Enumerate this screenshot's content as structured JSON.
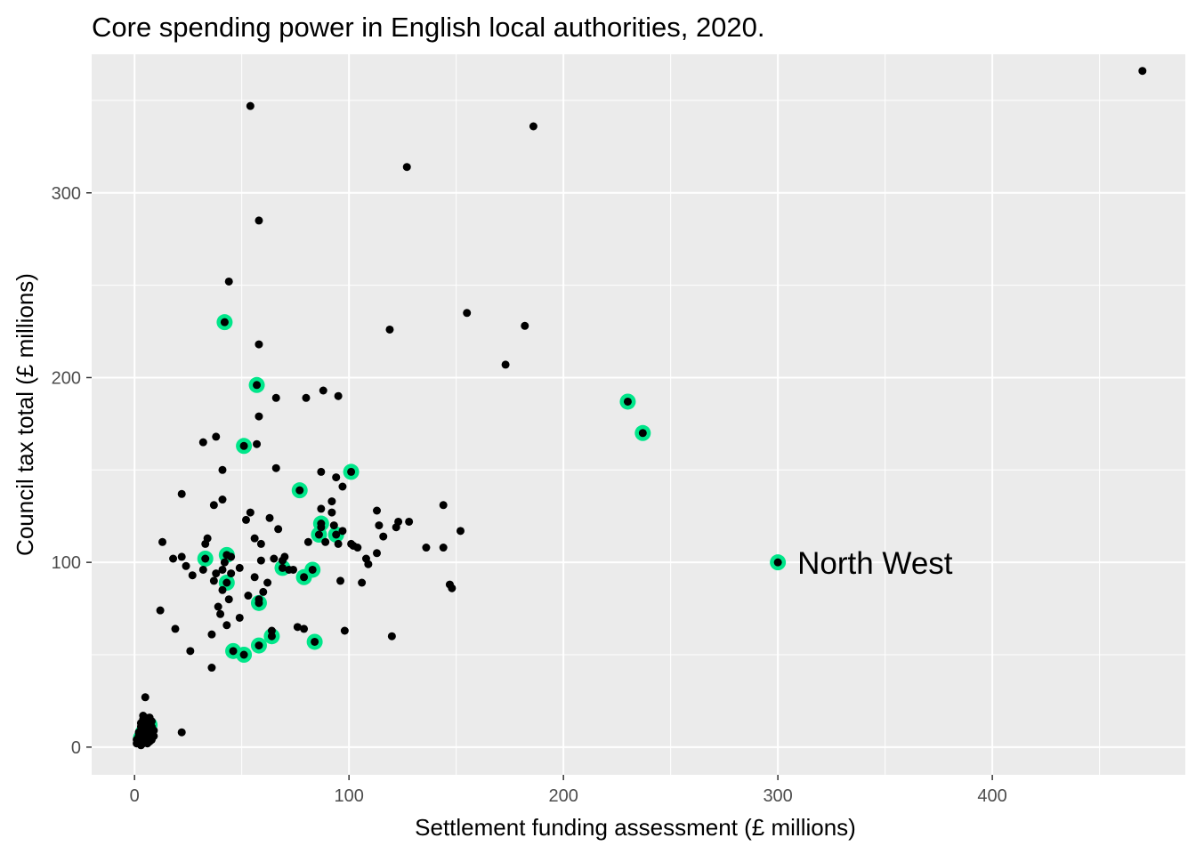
{
  "chart_data": {
    "type": "scatter",
    "title": "Core spending power in English local authorities, 2020.",
    "xlabel": "Settlement funding assessment (£ millions)",
    "ylabel": "Council tax total (£ millions)",
    "xlim": [
      -20,
      490
    ],
    "ylim": [
      -15,
      375
    ],
    "x_ticks": [
      0,
      100,
      200,
      300,
      400
    ],
    "y_ticks": [
      0,
      100,
      200,
      300
    ],
    "grid": true,
    "legend": "none",
    "colors": {
      "panel": "#ebebeb",
      "grid_major": "#ffffff",
      "point": "#000000",
      "highlight": "#00e68a",
      "tick_label": "#4d4d4d"
    },
    "series": [
      {
        "points": [
          [
            470,
            366
          ],
          [
            54,
            347
          ],
          [
            186,
            336
          ],
          [
            127,
            314
          ],
          [
            58,
            285
          ],
          [
            44,
            252
          ],
          [
            155,
            235
          ],
          [
            119,
            226
          ],
          [
            182,
            228
          ],
          [
            58,
            218
          ],
          [
            173,
            207
          ],
          [
            88,
            193
          ],
          [
            95,
            190
          ],
          [
            66,
            189
          ],
          [
            80,
            189
          ],
          [
            58,
            179
          ],
          [
            38,
            168
          ],
          [
            32,
            165
          ],
          [
            57,
            164
          ],
          [
            87,
            149
          ],
          [
            41,
            150
          ],
          [
            66,
            151
          ],
          [
            94,
            146
          ],
          [
            97,
            141
          ],
          [
            22,
            137
          ],
          [
            41,
            134
          ],
          [
            37,
            131
          ],
          [
            92,
            133
          ],
          [
            144,
            131
          ],
          [
            13,
            111
          ],
          [
            18,
            102
          ],
          [
            22,
            103
          ],
          [
            24,
            98
          ],
          [
            27,
            93
          ],
          [
            32,
            96
          ],
          [
            33,
            110
          ],
          [
            34,
            113
          ],
          [
            37,
            90
          ],
          [
            38,
            94
          ],
          [
            39,
            76
          ],
          [
            40,
            72
          ],
          [
            41,
            96
          ],
          [
            41,
            85
          ],
          [
            42,
            100
          ],
          [
            43,
            66
          ],
          [
            44,
            80
          ],
          [
            45,
            94
          ],
          [
            45,
            103
          ],
          [
            49,
            97
          ],
          [
            49,
            70
          ],
          [
            52,
            123
          ],
          [
            53,
            82
          ],
          [
            54,
            127
          ],
          [
            56,
            113
          ],
          [
            56,
            92
          ],
          [
            58,
            80
          ],
          [
            59,
            101
          ],
          [
            59,
            110
          ],
          [
            60,
            84
          ],
          [
            62,
            89
          ],
          [
            63,
            124
          ],
          [
            64,
            63
          ],
          [
            65,
            102
          ],
          [
            67,
            118
          ],
          [
            69,
            101
          ],
          [
            70,
            103
          ],
          [
            72,
            96
          ],
          [
            74,
            96
          ],
          [
            76,
            65
          ],
          [
            79,
            64
          ],
          [
            81,
            111
          ],
          [
            87,
            129
          ],
          [
            87,
            119
          ],
          [
            89,
            111
          ],
          [
            92,
            127
          ],
          [
            93,
            120
          ],
          [
            95,
            110
          ],
          [
            96,
            90
          ],
          [
            97,
            117
          ],
          [
            98,
            63
          ],
          [
            101,
            110
          ],
          [
            102,
            109
          ],
          [
            104,
            108
          ],
          [
            106,
            89
          ],
          [
            108,
            102
          ],
          [
            109,
            99
          ],
          [
            113,
            128
          ],
          [
            113,
            105
          ],
          [
            114,
            120
          ],
          [
            116,
            114
          ],
          [
            120,
            60
          ],
          [
            122,
            119
          ],
          [
            123,
            122
          ],
          [
            128,
            122
          ],
          [
            136,
            108
          ],
          [
            144,
            108
          ],
          [
            147,
            88
          ],
          [
            148,
            86
          ],
          [
            152,
            117
          ],
          [
            12,
            74
          ],
          [
            19,
            64
          ],
          [
            26,
            52
          ],
          [
            22,
            8
          ],
          [
            36,
            43
          ],
          [
            36,
            61
          ],
          [
            5,
            27
          ]
        ]
      },
      {
        "points": [
          [
            42,
            230
          ],
          [
            57,
            196
          ],
          [
            230,
            187
          ],
          [
            237,
            170
          ],
          [
            51,
            163
          ],
          [
            101,
            149
          ],
          [
            77,
            139
          ],
          [
            86,
            115
          ],
          [
            87,
            121
          ],
          [
            94,
            115
          ],
          [
            33,
            102
          ],
          [
            43,
            104
          ],
          [
            43,
            89
          ],
          [
            69,
            97
          ],
          [
            83,
            96
          ],
          [
            79,
            92
          ],
          [
            58,
            78
          ],
          [
            46,
            52
          ],
          [
            51,
            50
          ],
          [
            58,
            55
          ],
          [
            64,
            60
          ],
          [
            84,
            57
          ],
          [
            300,
            100
          ],
          [
            3,
            5
          ],
          [
            4,
            8
          ],
          [
            5,
            10
          ],
          [
            6,
            6
          ],
          [
            7,
            12
          ]
        ]
      },
      {
        "points": [
          [
            1,
            2
          ],
          [
            1,
            4
          ],
          [
            2,
            3
          ],
          [
            2,
            6
          ],
          [
            2,
            8
          ],
          [
            3,
            1
          ],
          [
            3,
            4
          ],
          [
            3,
            5
          ],
          [
            3,
            7
          ],
          [
            3,
            9
          ],
          [
            3,
            11
          ],
          [
            3,
            13
          ],
          [
            4,
            2
          ],
          [
            4,
            4
          ],
          [
            4,
            6
          ],
          [
            4,
            9
          ],
          [
            4,
            12
          ],
          [
            4,
            15
          ],
          [
            4,
            17
          ],
          [
            5,
            3
          ],
          [
            5,
            5
          ],
          [
            5,
            8
          ],
          [
            5,
            11
          ],
          [
            5,
            14
          ],
          [
            5,
            16
          ],
          [
            6,
            2
          ],
          [
            6,
            4
          ],
          [
            6,
            7
          ],
          [
            6,
            9
          ],
          [
            6,
            12
          ],
          [
            6,
            15
          ],
          [
            7,
            3
          ],
          [
            7,
            5
          ],
          [
            7,
            8
          ],
          [
            7,
            10
          ],
          [
            7,
            13
          ],
          [
            7,
            16
          ],
          [
            8,
            4
          ],
          [
            8,
            7
          ],
          [
            8,
            11
          ],
          [
            8,
            14
          ],
          [
            9,
            6
          ],
          [
            9,
            9
          ]
        ]
      }
    ],
    "annotations": [
      {
        "text": "North West",
        "x": 300,
        "y": 100
      }
    ]
  }
}
